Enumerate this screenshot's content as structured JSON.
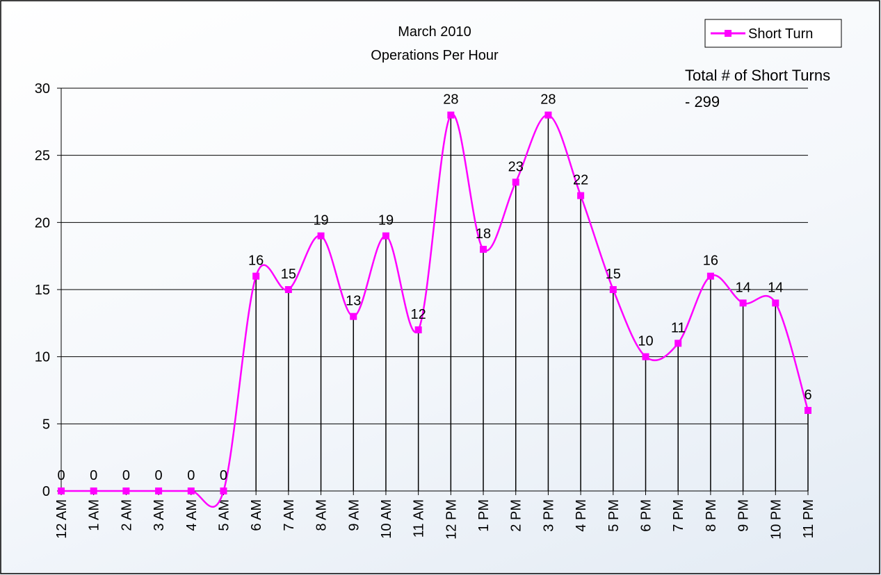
{
  "chart_data": {
    "type": "line",
    "title": "March 2010",
    "subtitle": "Operations Per Hour",
    "annotation": "Total # of Short Turns - 299",
    "categories": [
      "12 AM",
      "1 AM",
      "2 AM",
      "3 AM",
      "4 AM",
      "5 AM",
      "6 AM",
      "7 AM",
      "8 AM",
      "9 AM",
      "10 AM",
      "11 AM",
      "12 PM",
      "1 PM",
      "2 PM",
      "3 PM",
      "4 PM",
      "5 PM",
      "6 PM",
      "7 PM",
      "8 PM",
      "9 PM",
      "10 PM",
      "11 PM"
    ],
    "series": [
      {
        "name": "Short Turn",
        "color": "#ff00ff",
        "values": [
          0,
          0,
          0,
          0,
          0,
          0,
          16,
          15,
          19,
          13,
          19,
          12,
          28,
          18,
          23,
          28,
          22,
          15,
          10,
          11,
          16,
          14,
          14,
          6
        ]
      }
    ],
    "ylim": [
      0,
      30
    ],
    "yticks": [
      0,
      5,
      10,
      15,
      20,
      25,
      30
    ],
    "grid": true,
    "smooth": true,
    "drop_lines": true,
    "legend": "top-right"
  }
}
